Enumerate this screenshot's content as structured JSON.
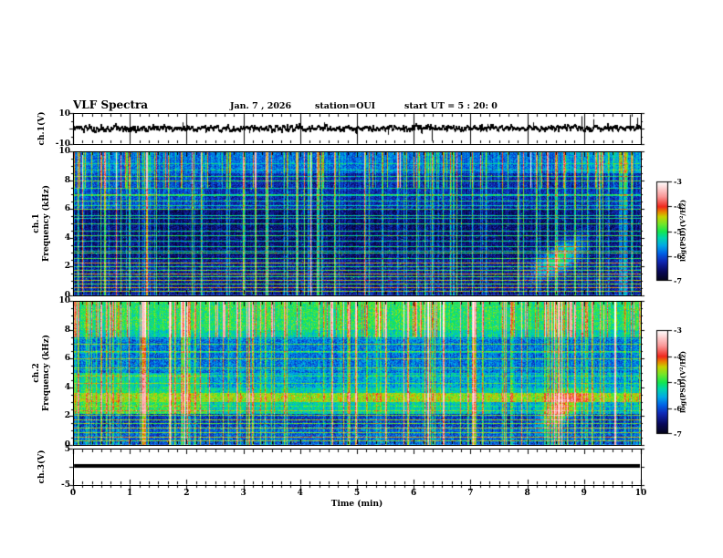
{
  "header": {
    "title": "VLF Spectra",
    "date": "Jan. 7 , 2026",
    "station": "station=OUI",
    "start_ut": "start UT =  5 : 20: 0"
  },
  "axes": {
    "time_label": "Time (min)",
    "time_ticks": [
      0,
      1,
      2,
      3,
      4,
      5,
      6,
      7,
      8,
      9,
      10
    ],
    "time_minor_per_major": 6,
    "freq_ticks": [
      10,
      8,
      6,
      4,
      2,
      0
    ],
    "freq_minor_step_khz": 0.5
  },
  "panels": {
    "ch1_wave": {
      "ylabel": "ch.1(V)",
      "yticks": [
        10,
        -10
      ]
    },
    "spec1": {
      "ylabel_line1": "ch.1",
      "ylabel_line2": "Frequency (kHz)"
    },
    "spec2": {
      "ylabel_line1": "ch.2",
      "ylabel_line2": "Frequency (kHz)"
    },
    "ch3": {
      "ylabel": "ch.3(V)",
      "yticks": [
        5,
        -5
      ]
    }
  },
  "colorbar": {
    "label": "log(PSD)(V²/Hz)",
    "ticks": [
      -3,
      -4,
      -5,
      -6,
      -7
    ],
    "colormap_stops": [
      [
        0.0,
        4,
        4,
        20
      ],
      [
        0.1,
        8,
        8,
        90
      ],
      [
        0.2,
        16,
        40,
        180
      ],
      [
        0.28,
        0,
        96,
        230
      ],
      [
        0.36,
        0,
        170,
        230
      ],
      [
        0.44,
        0,
        215,
        170
      ],
      [
        0.5,
        20,
        230,
        80
      ],
      [
        0.58,
        120,
        230,
        40
      ],
      [
        0.65,
        200,
        210,
        0
      ],
      [
        0.7,
        235,
        130,
        0
      ],
      [
        0.75,
        240,
        40,
        30
      ],
      [
        0.85,
        250,
        150,
        150
      ],
      [
        1.0,
        255,
        255,
        255
      ]
    ]
  },
  "chart_data": [
    {
      "type": "line",
      "panel": "ch1_voltage",
      "xlabel": "Time (min)",
      "xlim": [
        0,
        10
      ],
      "ylabel": "ch.1(V)",
      "ylim": [
        -10,
        10
      ],
      "description": "continuous noisy trace centred on 0 V with occasional spikes",
      "noise_v": 0.9,
      "seed": 7,
      "spikes": [
        [
          1.93,
          4
        ],
        [
          3.1,
          -3
        ],
        [
          4.42,
          4
        ],
        [
          5.55,
          -4
        ],
        [
          6.32,
          -8
        ],
        [
          7.3,
          3
        ],
        [
          8.1,
          4
        ],
        [
          8.95,
          8
        ],
        [
          9.17,
          6
        ],
        [
          9.8,
          9
        ],
        [
          9.93,
          7
        ]
      ]
    },
    {
      "type": "heatmap",
      "panel": "ch1_spectrogram",
      "xlim": [
        0,
        10
      ],
      "ylim": [
        0,
        10
      ],
      "zlim": [
        -7,
        -3
      ],
      "zlabel": "log(PSD)(V²/Hz)",
      "description": "dark blue background, dense vertical sferic streaks, many narrow horizontal interference lines, bright line cluster below 2.5 kHz, cyan patch near 8.5 min / 2.6 kHz",
      "seed": 11,
      "noise": 0.16,
      "bands": [
        [
          8.5,
          10.01,
          0.3
        ],
        [
          6,
          8.5,
          0.2
        ],
        [
          2.5,
          6,
          0.13
        ],
        [
          0,
          2.5,
          0.17
        ]
      ],
      "lines": [
        [
          0.3,
          0.62
        ],
        [
          0.55,
          0.68
        ],
        [
          0.8,
          0.58
        ],
        [
          1.05,
          0.64
        ],
        [
          1.3,
          0.55
        ],
        [
          1.55,
          0.66
        ],
        [
          1.8,
          0.56
        ],
        [
          2.05,
          0.52
        ],
        [
          2.3,
          0.66
        ],
        [
          2.6,
          0.5
        ],
        [
          3.0,
          0.52
        ],
        [
          3.4,
          0.46
        ],
        [
          3.8,
          0.44
        ],
        [
          4.2,
          0.5
        ],
        [
          4.5,
          0.46
        ],
        [
          5.0,
          0.48
        ],
        [
          5.35,
          0.44
        ],
        [
          6.0,
          0.5
        ],
        [
          6.6,
          0.46
        ],
        [
          7.0,
          0.48
        ],
        [
          7.5,
          0.44
        ],
        [
          8.0,
          0.5
        ],
        [
          8.3,
          0.46
        ],
        [
          9.2,
          0.44
        ]
      ],
      "extra_lines": 10,
      "extra_range": [
        2.5,
        9.8
      ],
      "streaks": 150,
      "s_min": 0.15,
      "s_max": 0.45,
      "top_frac": 0.3,
      "patches": [
        [
          0,
          2.3,
          6,
          8.5,
          0.05
        ],
        [
          8.6,
          10,
          8.5,
          10,
          0.05
        ]
      ],
      "blob": [
        8.55,
        2.6,
        24,
        0.9,
        0.38,
        0.8
      ]
    },
    {
      "type": "heatmap",
      "panel": "ch2_spectrogram",
      "xlim": [
        0,
        10
      ],
      "ylim": [
        0,
        10
      ],
      "zlim": [
        -7,
        -3
      ],
      "zlabel": "log(PSD)(V²/Hz)",
      "description": "brighter channel: green 8-10 kHz band with heavy streaks, bright green band at 3-3.6 kHz, dark band 1.3-2.2 kHz, cyan patch near 8.5 min / 2.4 kHz",
      "seed": 22,
      "noise": 0.18,
      "bands": [
        [
          8,
          10.01,
          0.5
        ],
        [
          7.5,
          8,
          0.44
        ],
        [
          5,
          7.5,
          0.3
        ],
        [
          4,
          5,
          0.38
        ],
        [
          3.65,
          4,
          0.42
        ],
        [
          3.0,
          3.65,
          0.6
        ],
        [
          2.2,
          3.0,
          0.42
        ],
        [
          1.3,
          2.2,
          0.22
        ],
        [
          0,
          1.3,
          0.27
        ]
      ],
      "lines": [
        [
          0.3,
          0.6
        ],
        [
          0.6,
          0.66
        ],
        [
          0.9,
          0.58
        ],
        [
          1.2,
          0.62
        ],
        [
          1.5,
          0.55
        ],
        [
          1.8,
          0.6
        ],
        [
          2.1,
          0.56
        ],
        [
          2.4,
          0.6
        ],
        [
          2.75,
          0.52
        ],
        [
          4.3,
          0.55
        ],
        [
          4.8,
          0.52
        ],
        [
          5.4,
          0.54
        ],
        [
          6.0,
          0.56
        ],
        [
          6.5,
          0.52
        ],
        [
          7.0,
          0.54
        ]
      ],
      "extra_lines": 8,
      "extra_range": [
        4,
        9.5
      ],
      "streaks": 170,
      "s_min": 0.15,
      "s_max": 0.48,
      "top_frac": 0.25,
      "patches": [
        [
          0,
          2.35,
          2.2,
          3.0,
          0.1
        ],
        [
          0,
          2.35,
          3.65,
          5,
          0.06
        ],
        [
          7.35,
          10,
          2.2,
          3.0,
          -0.05
        ],
        [
          2.35,
          10,
          4,
          5,
          -0.03
        ]
      ],
      "blob": [
        8.55,
        2.4,
        22,
        0.9,
        0.34,
        0.8
      ]
    },
    {
      "type": "line",
      "panel": "ch3_voltage",
      "xlim": [
        0,
        10
      ],
      "ylim": [
        -5,
        5
      ],
      "description": "flat thick black line slightly above 0 V for the whole record",
      "value_v": 0.3,
      "thickness_v": 1.0
    }
  ]
}
